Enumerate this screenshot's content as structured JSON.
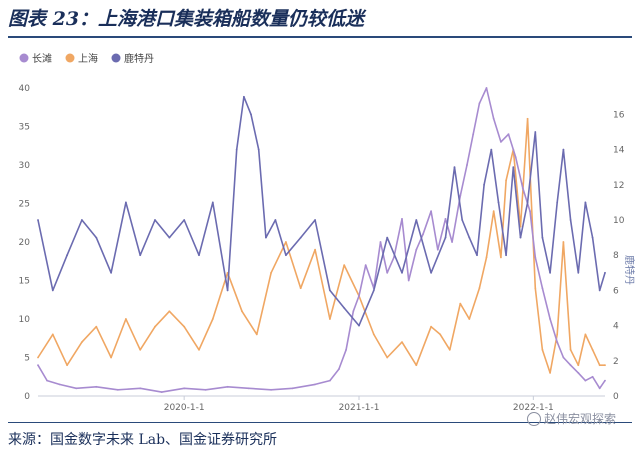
{
  "header": {
    "title": "图表 23：上海港口集装箱船数量仍较低迷"
  },
  "footer": {
    "source": "来源：国金数字未来 Lab、国金证券研究所",
    "watermark": "赵伟宏观探索",
    "watermark_icon": "wechat-logo"
  },
  "chart_data": {
    "type": "line",
    "title": "",
    "xlabel": "",
    "ylabel": "",
    "y2label": "鹿特丹",
    "legend_position": "top-left",
    "grid": false,
    "x_range": [
      "2019-03-01",
      "2022-05-31"
    ],
    "x_ticks": [
      "2020-1-1",
      "2021-1-1",
      "2022-1-1"
    ],
    "ylim": [
      0,
      40
    ],
    "y_ticks": [
      0,
      5,
      10,
      15,
      20,
      25,
      30,
      35,
      40
    ],
    "y2lim": [
      0,
      17.5
    ],
    "y2_ticks": [
      0,
      2,
      4,
      6,
      8,
      10,
      12,
      14,
      16
    ],
    "series": [
      {
        "name": "长滩",
        "color": "#a78bd0",
        "axis": "left",
        "x": [
          "2019-03-01",
          "2019-03-20",
          "2019-04-15",
          "2019-05-20",
          "2019-07-01",
          "2019-08-15",
          "2019-10-01",
          "2019-11-15",
          "2020-01-01",
          "2020-02-15",
          "2020-04-01",
          "2020-05-15",
          "2020-07-01",
          "2020-08-15",
          "2020-10-01",
          "2020-11-01",
          "2020-11-20",
          "2020-12-05",
          "2020-12-20",
          "2021-01-01",
          "2021-01-15",
          "2021-02-01",
          "2021-02-15",
          "2021-03-01",
          "2021-03-15",
          "2021-04-01",
          "2021-04-15",
          "2021-05-01",
          "2021-05-15",
          "2021-06-01",
          "2021-06-15",
          "2021-07-01",
          "2021-07-15",
          "2021-08-01",
          "2021-08-15",
          "2021-08-28",
          "2021-09-10",
          "2021-09-25",
          "2021-10-10",
          "2021-10-25",
          "2021-11-10",
          "2021-11-25",
          "2021-12-10",
          "2021-12-25",
          "2022-01-05",
          "2022-01-20",
          "2022-02-05",
          "2022-02-20",
          "2022-03-05",
          "2022-03-20",
          "2022-04-05",
          "2022-04-20",
          "2022-05-05",
          "2022-05-20",
          "2022-05-31"
        ],
        "values": [
          4,
          2,
          1.5,
          1,
          1.2,
          0.8,
          1,
          0.5,
          1,
          0.8,
          1.2,
          1,
          0.8,
          1,
          1.5,
          2,
          3.5,
          6,
          11,
          13,
          17,
          14,
          20,
          16,
          18,
          23,
          15,
          19,
          21,
          24,
          19,
          23,
          20,
          26,
          30,
          34,
          38,
          40,
          36,
          33,
          34,
          31,
          27,
          24,
          18,
          14,
          10,
          7,
          5,
          4,
          3,
          2,
          2.5,
          1,
          2
        ]
      },
      {
        "name": "上海",
        "color": "#f0a763",
        "axis": "left",
        "x": [
          "2019-03-01",
          "2019-04-01",
          "2019-05-01",
          "2019-06-01",
          "2019-07-01",
          "2019-08-01",
          "2019-09-01",
          "2019-10-01",
          "2019-11-01",
          "2019-12-01",
          "2020-01-01",
          "2020-02-01",
          "2020-03-01",
          "2020-04-01",
          "2020-05-01",
          "2020-06-01",
          "2020-07-01",
          "2020-08-01",
          "2020-09-01",
          "2020-10-01",
          "2020-11-01",
          "2020-12-01",
          "2021-01-01",
          "2021-02-01",
          "2021-03-01",
          "2021-04-01",
          "2021-05-01",
          "2021-06-01",
          "2021-06-20",
          "2021-07-10",
          "2021-08-01",
          "2021-08-20",
          "2021-09-10",
          "2021-09-25",
          "2021-10-10",
          "2021-10-25",
          "2021-11-05",
          "2021-11-20",
          "2021-12-05",
          "2021-12-20",
          "2022-01-05",
          "2022-01-20",
          "2022-02-05",
          "2022-02-20",
          "2022-03-05",
          "2022-03-20",
          "2022-04-05",
          "2022-04-20",
          "2022-05-05",
          "2022-05-20",
          "2022-05-31"
        ],
        "values": [
          5,
          8,
          4,
          7,
          9,
          5,
          10,
          6,
          9,
          11,
          9,
          6,
          10,
          16,
          11,
          8,
          16,
          20,
          14,
          19,
          10,
          17,
          13,
          8,
          5,
          7,
          4,
          9,
          8,
          6,
          12,
          10,
          14,
          18,
          24,
          18,
          28,
          32,
          22,
          36,
          14,
          6,
          3,
          8,
          20,
          6,
          4,
          8,
          6,
          4,
          4
        ]
      },
      {
        "name": "鹿特丹",
        "color": "#6b6bb0",
        "axis": "right",
        "x": [
          "2019-03-01",
          "2019-04-01",
          "2019-05-01",
          "2019-06-01",
          "2019-07-01",
          "2019-08-01",
          "2019-09-01",
          "2019-10-01",
          "2019-11-01",
          "2019-12-01",
          "2020-01-01",
          "2020-02-01",
          "2020-03-01",
          "2020-04-01",
          "2020-04-20",
          "2020-05-05",
          "2020-05-20",
          "2020-06-05",
          "2020-06-20",
          "2020-07-10",
          "2020-08-01",
          "2020-09-01",
          "2020-10-01",
          "2020-11-01",
          "2020-12-01",
          "2021-01-01",
          "2021-02-01",
          "2021-03-01",
          "2021-04-01",
          "2021-05-01",
          "2021-06-01",
          "2021-07-01",
          "2021-07-20",
          "2021-08-05",
          "2021-08-20",
          "2021-09-05",
          "2021-09-20",
          "2021-10-05",
          "2021-10-20",
          "2021-11-05",
          "2021-11-20",
          "2021-12-05",
          "2021-12-20",
          "2022-01-05",
          "2022-01-20",
          "2022-02-05",
          "2022-02-20",
          "2022-03-05",
          "2022-03-20",
          "2022-04-05",
          "2022-04-20",
          "2022-05-05",
          "2022-05-20",
          "2022-05-31"
        ],
        "values": [
          10,
          6,
          8,
          10,
          9,
          7,
          11,
          8,
          10,
          9,
          10,
          8,
          11,
          6,
          14,
          17,
          16,
          14,
          9,
          10,
          8,
          9,
          10,
          6,
          5,
          4,
          6,
          9,
          7,
          10,
          7,
          9,
          13,
          10,
          9,
          8,
          12,
          14,
          11,
          8,
          13,
          9,
          11,
          15,
          9,
          7,
          11,
          14,
          10,
          7,
          11,
          9,
          6,
          7
        ]
      }
    ]
  }
}
